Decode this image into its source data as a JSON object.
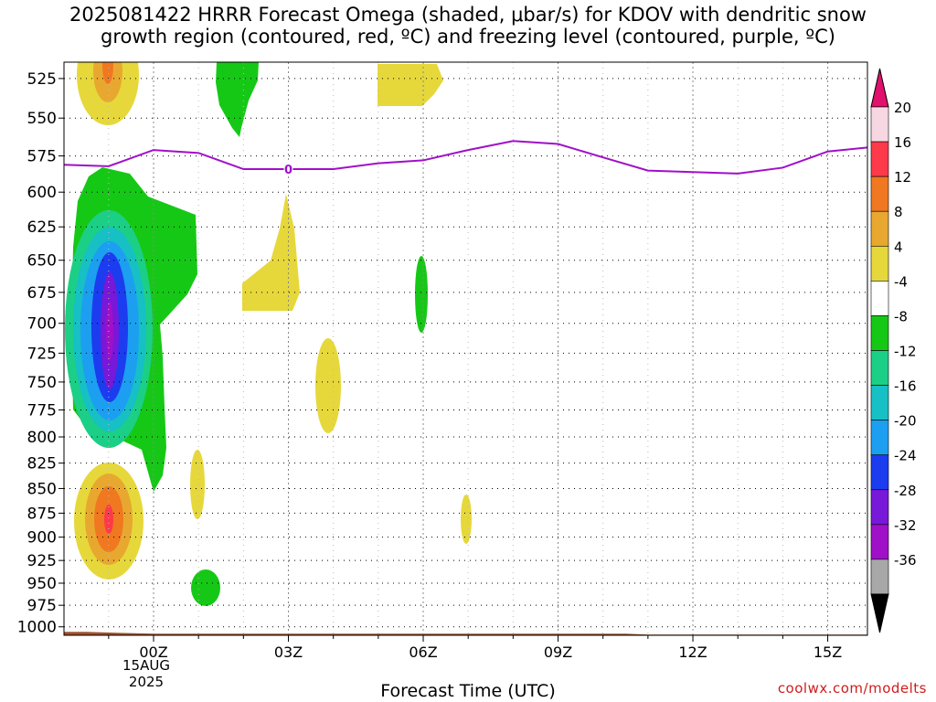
{
  "title_line1": "2025081422 HRRR Forecast Omega (shaded, μbar/s) for KDOV with dendritic snow",
  "title_line2": "growth region (contoured, red, ºC) and freezing level (contoured, purple, ºC)",
  "watermark": "coolwx.com/modelts",
  "chart_data": {
    "type": "heatmap",
    "xlabel": "Forecast Time (UTC)",
    "ylabel": "",
    "x_ticks": [
      "00Z",
      "03Z",
      "06Z",
      "09Z",
      "12Z",
      "15Z"
    ],
    "x_tick_hours": [
      0,
      3,
      6,
      9,
      12,
      15
    ],
    "date_label": [
      "15AUG",
      "2025"
    ],
    "xlim": [
      -2,
      16
    ],
    "y_ticks": [
      525,
      550,
      575,
      600,
      625,
      650,
      675,
      700,
      725,
      750,
      775,
      800,
      825,
      850,
      875,
      900,
      925,
      950,
      975,
      1000
    ],
    "ylim": [
      515,
      1010
    ],
    "y_scale": "log",
    "grid": true,
    "colorbar": {
      "ticks": [
        "20",
        "16",
        "12",
        "8",
        "4",
        "-4",
        "-8",
        "-12",
        "-16",
        "-20",
        "-24",
        "-28",
        "-32",
        "-36"
      ],
      "colors": [
        "#f7d8e2",
        "#fc3a4a",
        "#f07820",
        "#e8a830",
        "#e6d83a",
        "#ffffff",
        "#16c816",
        "#1ccf86",
        "#16c0c4",
        "#1c9ff0",
        "#1c3cf0",
        "#7818d8",
        "#a010c8",
        "#a8a8a8"
      ],
      "top_arrow_color": "#e0106c",
      "bottom_arrow_color": "#000000"
    },
    "omega_colors": {
      "4_8": "#e6d83a",
      "8_12": "#e8a830",
      "12_16": "#f07820",
      "16_20": "#fc3a4a",
      "neg4_neg8": "#16c816",
      "neg8_neg12": "#1ccf86",
      "neg12_neg16": "#16c0c4",
      "neg16_neg20": "#1c9ff0",
      "neg20_neg24": "#1c3cf0",
      "neg24_neg28": "#7818d8",
      "neg28_neg32": "#a010c8"
    },
    "freezing_level": {
      "color": "#a010c8",
      "label": "0",
      "label_hour": 3,
      "points": [
        [
          -2,
          581
        ],
        [
          -1,
          582
        ],
        [
          0,
          571
        ],
        [
          1,
          573
        ],
        [
          2,
          584
        ],
        [
          3,
          584
        ],
        [
          4,
          584
        ],
        [
          5,
          580
        ],
        [
          6,
          578
        ],
        [
          7,
          571
        ],
        [
          8,
          565
        ],
        [
          9,
          567
        ],
        [
          10,
          576
        ],
        [
          11,
          585
        ],
        [
          12,
          586
        ],
        [
          13,
          587
        ],
        [
          14,
          583
        ],
        [
          15,
          572
        ],
        [
          16,
          569
        ]
      ]
    },
    "ground": {
      "color": "#a0522d",
      "top_pressure": 1006
    }
  }
}
